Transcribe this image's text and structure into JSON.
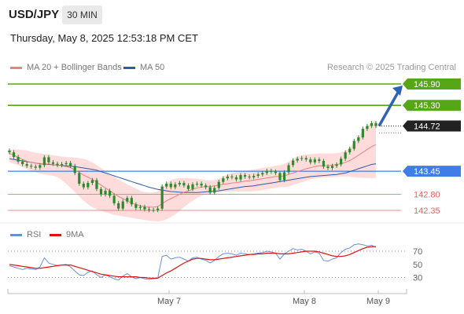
{
  "header": {
    "symbol": "USD/JPY",
    "timeframe": "30 MIN",
    "timestamp": "Thursday, May 8, 2025 12:53:18 PM CET"
  },
  "legend": {
    "ma20_label": "MA 20 + Bollinger Bands",
    "ma50_label": "MA 50",
    "credit": "Research © 2025 Trading Central"
  },
  "colors": {
    "ma20": "#f08080",
    "ma50": "#2f5aa8",
    "target": "#57a618",
    "pivot": "#3f7ee8",
    "support": "#e06666",
    "rsi": "#6a8fd8",
    "rsi_ma": "#e01010",
    "candle": "#2b8a2b"
  },
  "chart_data": [
    {
      "type": "candlestick",
      "x_ticks": [
        "May 7",
        "May 8",
        "May 9"
      ],
      "levels": [
        {
          "value": 145.9,
          "label": "145.90",
          "kind": "target"
        },
        {
          "value": 145.3,
          "label": "145.30",
          "kind": "target"
        },
        {
          "value": 144.72,
          "label": "144.72",
          "kind": "last"
        },
        {
          "value": 143.45,
          "label": "143.45",
          "kind": "pivot"
        },
        {
          "value": 142.8,
          "label": "142.80",
          "kind": "support"
        },
        {
          "value": 142.35,
          "label": "142.35",
          "kind": "support"
        }
      ],
      "close": [
        143.98,
        143.85,
        143.72,
        143.65,
        143.6,
        143.58,
        143.55,
        143.62,
        143.84,
        143.7,
        143.66,
        143.62,
        143.65,
        143.68,
        143.6,
        143.4,
        143.1,
        143.0,
        143.12,
        143.2,
        142.95,
        142.8,
        142.9,
        142.76,
        142.55,
        142.4,
        142.6,
        142.7,
        142.52,
        142.42,
        142.45,
        142.38,
        142.36,
        142.36,
        142.4,
        143.02,
        143.1,
        143.0,
        143.08,
        143.12,
        143.05,
        142.95,
        143.08,
        143.1,
        143.05,
        143.0,
        142.85,
        142.98,
        143.15,
        143.25,
        143.3,
        143.28,
        143.22,
        143.34,
        143.3,
        143.28,
        143.32,
        143.36,
        143.4,
        143.46,
        143.44,
        143.4,
        143.2,
        143.42,
        143.62,
        143.75,
        143.8,
        143.82,
        143.78,
        143.7,
        143.78,
        143.74,
        143.58,
        143.54,
        143.6,
        143.64,
        143.8,
        143.98,
        144.08,
        144.3,
        144.4,
        144.64,
        144.72,
        144.8,
        144.72
      ],
      "ma20": [
        143.95,
        143.9,
        143.84,
        143.78,
        143.73,
        143.7,
        143.68,
        143.66,
        143.66,
        143.65,
        143.64,
        143.62,
        143.6,
        143.58,
        143.55,
        143.48,
        143.42,
        143.34,
        143.28,
        143.22,
        143.14,
        143.06,
        142.98,
        142.9,
        142.82,
        142.74,
        142.68,
        142.62,
        142.56,
        142.52,
        142.48,
        142.45,
        142.44,
        142.44,
        142.46,
        142.54,
        142.62,
        142.68,
        142.74,
        142.8,
        142.86,
        142.9,
        142.94,
        142.98,
        143.0,
        143.02,
        143.02,
        143.04,
        143.06,
        143.08,
        143.1,
        143.12,
        143.13,
        143.15,
        143.17,
        143.18,
        143.2,
        143.22,
        143.24,
        143.26,
        143.28,
        143.3,
        143.3,
        143.32,
        143.36,
        143.4,
        143.44,
        143.48,
        143.52,
        143.55,
        143.58,
        143.6,
        143.6,
        143.61,
        143.62,
        143.64,
        143.66,
        143.7,
        143.75,
        143.82,
        143.9,
        143.98,
        144.06,
        144.14,
        144.2
      ],
      "bb_upper": [
        144.05,
        144.06,
        144.06,
        144.05,
        144.03,
        144.0,
        143.97,
        143.95,
        143.93,
        143.92,
        143.9,
        143.88,
        143.86,
        143.85,
        143.84,
        143.83,
        143.82,
        143.8,
        143.76,
        143.7,
        143.62,
        143.54,
        143.46,
        143.38,
        143.3,
        143.22,
        143.15,
        143.08,
        143.02,
        142.96,
        142.9,
        142.86,
        142.85,
        142.85,
        142.88,
        143.0,
        143.12,
        143.2,
        143.24,
        143.26,
        143.26,
        143.26,
        143.25,
        143.24,
        143.22,
        143.2,
        143.2,
        143.2,
        143.24,
        143.3,
        143.36,
        143.4,
        143.42,
        143.44,
        143.46,
        143.48,
        143.5,
        143.52,
        143.54,
        143.56,
        143.58,
        143.6,
        143.62,
        143.66,
        143.72,
        143.8,
        143.86,
        143.9,
        143.92,
        143.93,
        143.94,
        143.95,
        143.95,
        143.95,
        143.95,
        143.96,
        143.98,
        144.02,
        144.1,
        144.24,
        144.4,
        144.58,
        144.72,
        144.82,
        144.88
      ],
      "bb_lower": [
        143.7,
        143.66,
        143.62,
        143.56,
        143.5,
        143.46,
        143.42,
        143.38,
        143.36,
        143.34,
        143.32,
        143.28,
        143.2,
        143.1,
        142.98,
        142.86,
        142.74,
        142.62,
        142.52,
        142.44,
        142.38,
        142.34,
        142.3,
        142.26,
        142.22,
        142.2,
        142.18,
        142.16,
        142.14,
        142.12,
        142.1,
        142.08,
        142.06,
        142.05,
        142.04,
        142.06,
        142.1,
        142.16,
        142.24,
        142.34,
        142.44,
        142.54,
        142.62,
        142.7,
        142.76,
        142.8,
        142.82,
        142.84,
        142.86,
        142.87,
        142.88,
        142.88,
        142.88,
        142.88,
        142.88,
        142.88,
        142.89,
        142.9,
        142.92,
        142.94,
        142.96,
        142.98,
        143.0,
        143.0,
        143.02,
        143.06,
        143.1,
        143.14,
        143.18,
        143.22,
        143.24,
        143.26,
        143.27,
        143.28,
        143.28,
        143.29,
        143.3,
        143.3,
        143.3,
        143.28,
        143.27,
        143.26,
        143.26,
        143.26,
        143.26
      ],
      "ma50": [
        143.8,
        143.78,
        143.76,
        143.74,
        143.72,
        143.7,
        143.68,
        143.66,
        143.65,
        143.64,
        143.63,
        143.62,
        143.61,
        143.6,
        143.59,
        143.58,
        143.56,
        143.54,
        143.52,
        143.5,
        143.48,
        143.44,
        143.4,
        143.36,
        143.32,
        143.28,
        143.24,
        143.2,
        143.16,
        143.12,
        143.08,
        143.04,
        143.0,
        142.97,
        142.94,
        142.92,
        142.9,
        142.88,
        142.87,
        142.86,
        142.85,
        142.85,
        142.85,
        142.85,
        142.86,
        142.87,
        142.88,
        142.89,
        142.9,
        142.92,
        142.94,
        142.96,
        142.98,
        143.0,
        143.02,
        143.03,
        143.04,
        143.06,
        143.08,
        143.1,
        143.12,
        143.14,
        143.16,
        143.18,
        143.2,
        143.22,
        143.24,
        143.26,
        143.28,
        143.3,
        143.31,
        143.32,
        143.33,
        143.34,
        143.35,
        143.36,
        143.38,
        143.4,
        143.44,
        143.48,
        143.52,
        143.56,
        143.6,
        143.64,
        143.66
      ]
    },
    {
      "type": "line",
      "series": [
        {
          "name": "RSI",
          "values": [
            48,
            46,
            44,
            42,
            44,
            43,
            42,
            46,
            60,
            52,
            50,
            48,
            49,
            50,
            46,
            40,
            34,
            33,
            38,
            40,
            34,
            30,
            34,
            31,
            28,
            26,
            32,
            36,
            31,
            28,
            30,
            28,
            27,
            28,
            29,
            62,
            64,
            58,
            60,
            61,
            58,
            55,
            60,
            61,
            58,
            56,
            52,
            56,
            62,
            66,
            67,
            66,
            64,
            67,
            66,
            65,
            66,
            67,
            68,
            70,
            69,
            67,
            58,
            66,
            70,
            74,
            72,
            73,
            70,
            66,
            69,
            67,
            56,
            55,
            58,
            60,
            68,
            73,
            75,
            80,
            81,
            80,
            78,
            79,
            76
          ]
        },
        {
          "name": "9MA",
          "values": [
            50,
            49,
            48,
            47,
            46,
            45,
            44,
            44,
            45,
            46,
            47,
            48,
            49,
            49,
            49,
            47,
            45,
            43,
            41,
            39,
            37,
            35,
            34,
            33,
            32,
            31,
            31,
            31,
            31,
            31,
            30,
            30,
            29,
            29,
            29,
            33,
            37,
            40,
            44,
            48,
            52,
            55,
            58,
            59,
            59,
            58,
            57,
            57,
            58,
            59,
            60,
            61,
            62,
            63,
            64,
            65,
            65,
            66,
            66,
            67,
            67,
            67,
            66,
            66,
            66,
            67,
            68,
            69,
            70,
            70,
            70,
            69,
            67,
            65,
            63,
            62,
            62,
            63,
            65,
            68,
            71,
            74,
            76,
            77,
            77
          ]
        }
      ],
      "y_ticks": [
        70,
        50,
        30
      ],
      "ylim": [
        15,
        88
      ]
    }
  ]
}
